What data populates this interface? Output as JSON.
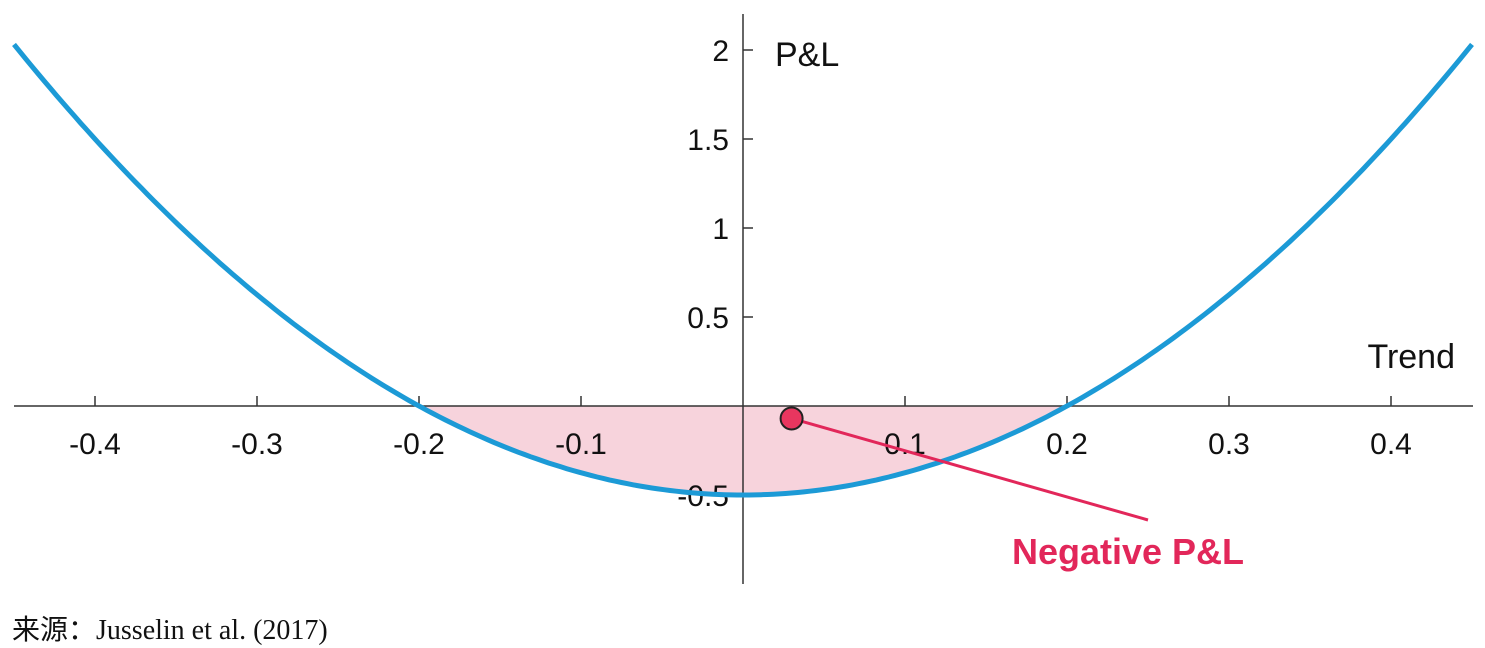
{
  "chart_data": {
    "type": "line",
    "xlabel": "Trend",
    "ylabel": "P&L",
    "xlim": [
      -0.45,
      0.45
    ],
    "ylim": [
      -0.7,
      2.1
    ],
    "x_ticks": [
      -0.4,
      -0.3,
      -0.2,
      -0.1,
      0.1,
      0.2,
      0.3,
      0.4
    ],
    "x_tick_labels": [
      "-0.4",
      "-0.3",
      "-0.2",
      "-0.1",
      "0.1",
      "0.2",
      "0.3",
      "0.4"
    ],
    "y_ticks": [
      -0.5,
      0.5,
      1,
      1.5,
      2
    ],
    "y_tick_labels": [
      "-0.5",
      "0.5",
      "1",
      "1.5",
      "2"
    ],
    "series": [
      {
        "function": "12.5*x^2 - 0.5",
        "x": [
          -0.45,
          -0.4,
          -0.35,
          -0.3,
          -0.25,
          -0.2,
          -0.15,
          -0.1,
          -0.05,
          0,
          0.05,
          0.1,
          0.15,
          0.2,
          0.25,
          0.3,
          0.35,
          0.4,
          0.45
        ],
        "y": [
          2.03,
          1.5,
          1.03,
          0.63,
          0.28,
          0.0,
          -0.22,
          -0.38,
          -0.47,
          -0.5,
          -0.47,
          -0.38,
          -0.22,
          0.0,
          0.28,
          0.63,
          1.03,
          1.5,
          2.03
        ],
        "color": "#1c9ad6"
      }
    ],
    "shaded_region": {
      "x_from": -0.2,
      "x_to": 0.2,
      "color": "#f7d3dc"
    },
    "marker": {
      "x": 0.03,
      "y": -0.07,
      "color": "#e8365f"
    },
    "annotation": {
      "text": "Negative P&L",
      "color": "#e2275a"
    },
    "grid": false
  },
  "source_text": "来源：Jusselin et al. (2017)"
}
